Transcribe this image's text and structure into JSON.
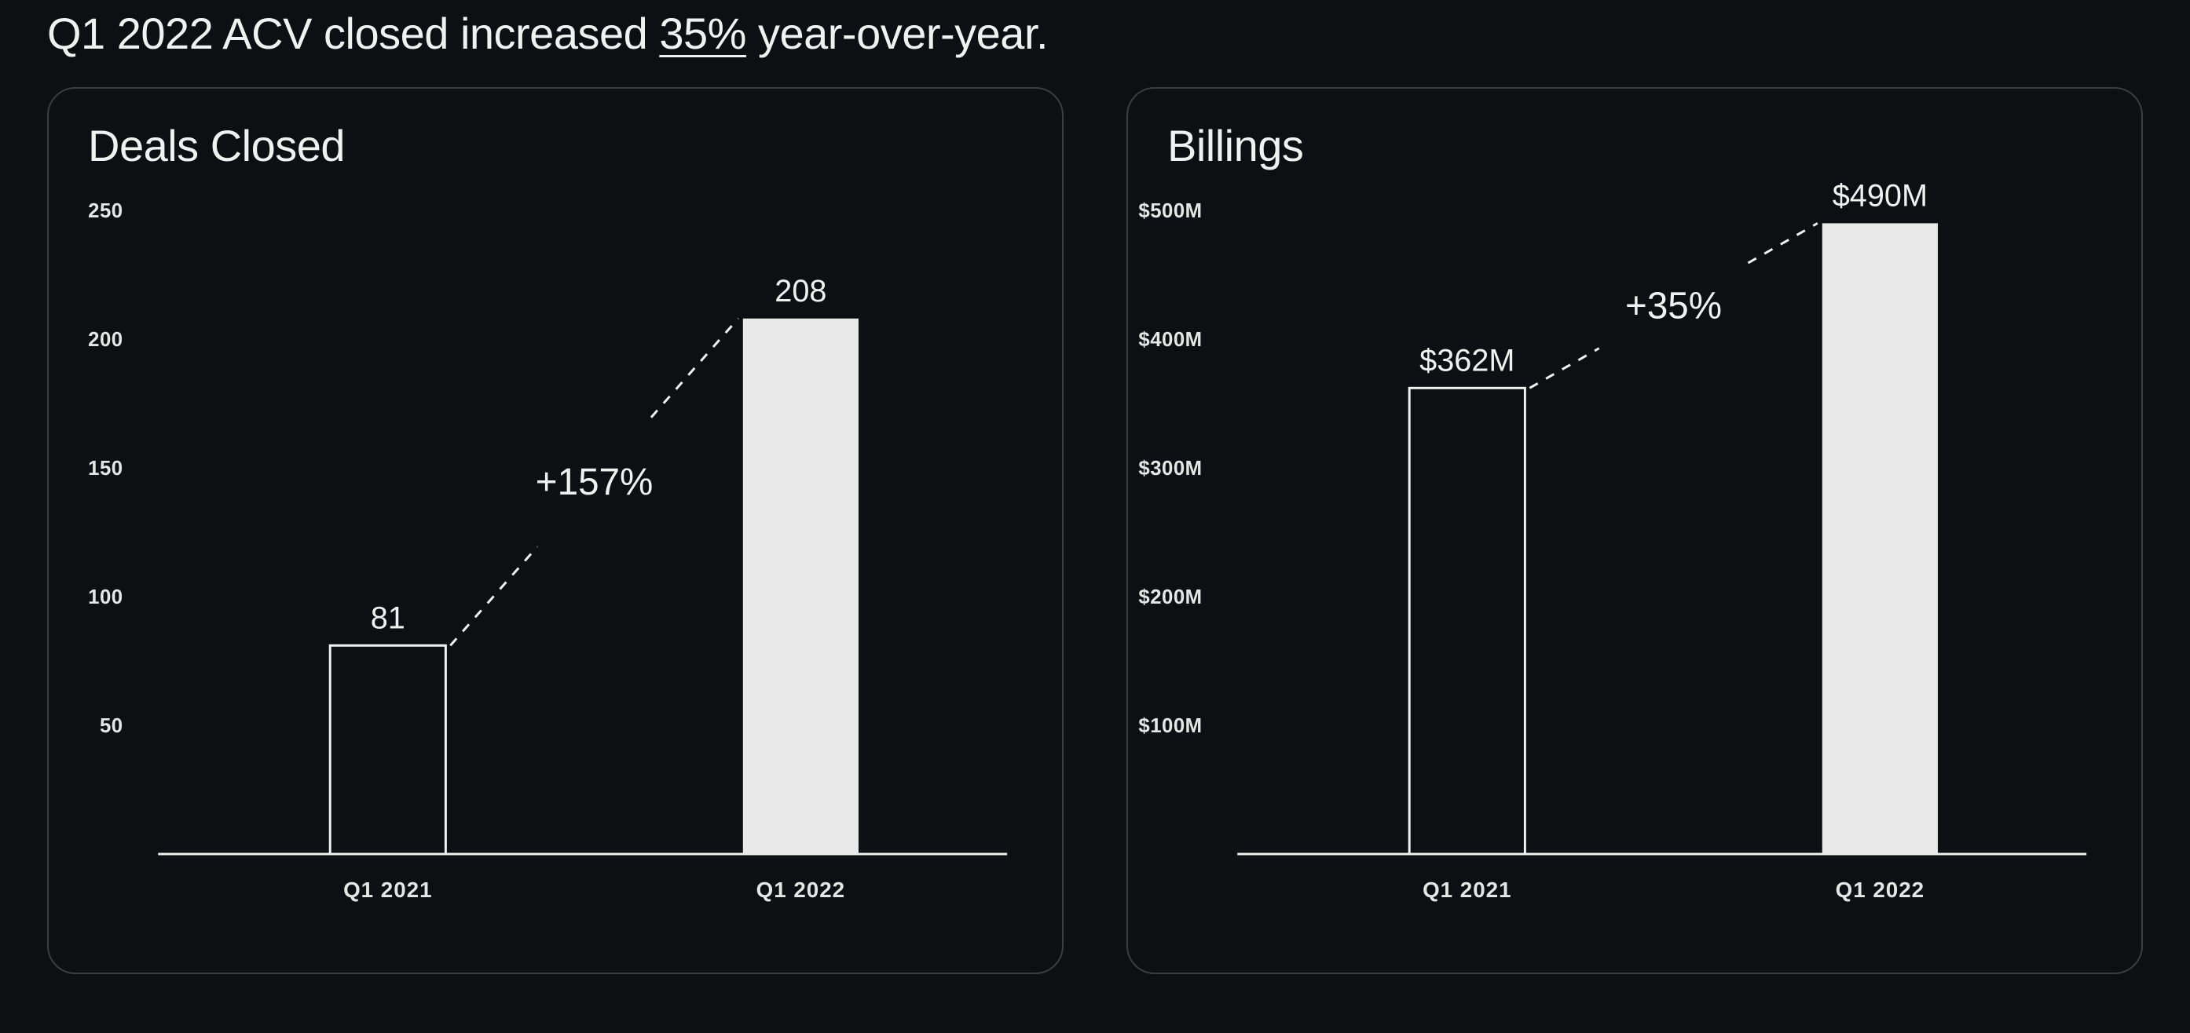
{
  "headline": {
    "prefix": "Q1 2022 ACV closed increased ",
    "underlined": "35%",
    "suffix": " year-over-year."
  },
  "colors": {
    "background": "#0d0f13",
    "card_border": "#3a3d42",
    "text": "#f1f1f1",
    "bar_outline": "#f1f1f1",
    "bar_fill": "#e9e9e9",
    "axis": "#f1f1f1",
    "trend_line": "#f1f1f1"
  },
  "typography": {
    "headline_fontsize": 56,
    "card_title_fontsize": 56,
    "ytick_fontsize": 26,
    "xlabel_fontsize": 28,
    "bar_value_fontsize": 40,
    "pct_fontsize": 48
  },
  "charts": [
    {
      "id": "deals",
      "type": "bar",
      "title": "Deals Closed",
      "categories": [
        "Q1 2021",
        "Q1 2022"
      ],
      "values": [
        81,
        208
      ],
      "value_labels": [
        "81",
        "208"
      ],
      "bar_styles": [
        "outline",
        "fill"
      ],
      "ylim": [
        0,
        250
      ],
      "yticks": [
        50,
        100,
        150,
        200,
        250
      ],
      "ytick_labels": [
        "50",
        "100",
        "150",
        "200",
        "250"
      ],
      "pct_label": "+157%",
      "bar_width_ratio": 0.28,
      "trend_dash": "12 12"
    },
    {
      "id": "billings",
      "type": "bar",
      "title": "Billings",
      "categories": [
        "Q1 2021",
        "Q1 2022"
      ],
      "values": [
        362,
        490
      ],
      "value_labels": [
        "$362M",
        "$490M"
      ],
      "bar_styles": [
        "outline",
        "fill"
      ],
      "ylim": [
        0,
        500
      ],
      "yticks": [
        100,
        200,
        300,
        400,
        500
      ],
      "ytick_labels": [
        "$100M",
        "$200M",
        "$300M",
        "$400M",
        "$500M"
      ],
      "pct_label": "+35%",
      "bar_width_ratio": 0.28,
      "trend_dash": "12 12"
    }
  ]
}
